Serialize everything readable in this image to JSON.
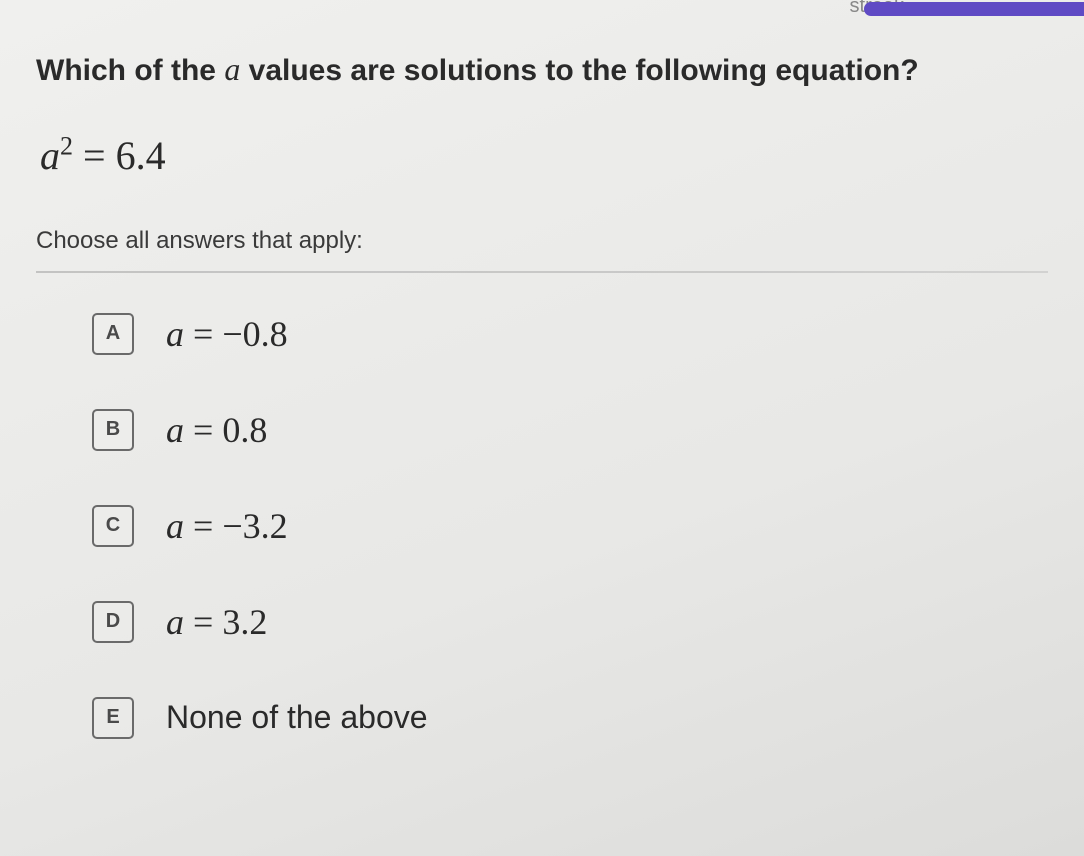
{
  "header": {
    "streak_label": "streak"
  },
  "question": {
    "prefix": "Which of the ",
    "variable": "a",
    "suffix": " values are solutions to the following equation?"
  },
  "equation": {
    "variable": "a",
    "exponent": "2",
    "equals": " = ",
    "rhs": "6.4"
  },
  "instruction": "Choose all answers that apply:",
  "options": [
    {
      "letter": "A",
      "var": "a",
      "equals": " = ",
      "value": "−0.8",
      "plain": false
    },
    {
      "letter": "B",
      "var": "a",
      "equals": " = ",
      "value": "0.8",
      "plain": false
    },
    {
      "letter": "C",
      "var": "a",
      "equals": " = ",
      "value": "−3.2",
      "plain": false
    },
    {
      "letter": "D",
      "var": "a",
      "equals": " = ",
      "value": "3.2",
      "plain": false
    },
    {
      "letter": "E",
      "text": "None of the above",
      "plain": true
    }
  ],
  "colors": {
    "progress": "#5f4ac4",
    "text_dark": "#2a2a2a",
    "box_border": "#6a6a6a"
  }
}
